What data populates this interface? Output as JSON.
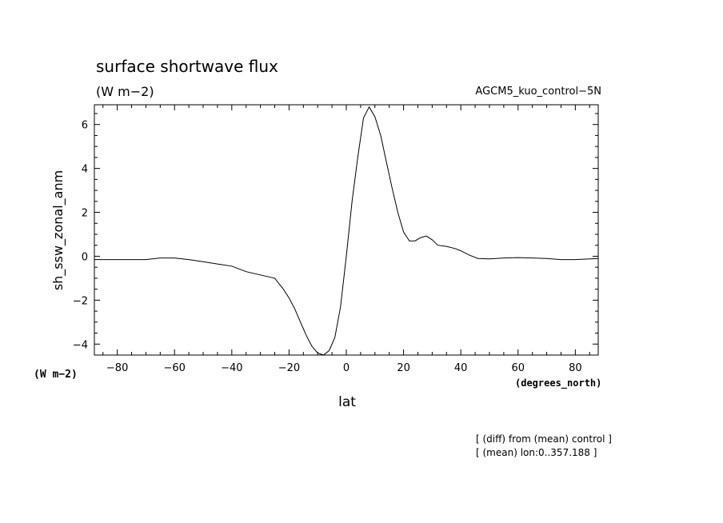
{
  "chart_data": {
    "type": "line",
    "title": "surface shortwave flux",
    "units": "(W m−2)",
    "run_label": "AGCM5_kuo_control−5N",
    "ylabel": "sh_ssw_zonal_anm",
    "y_units_label": "(W m−2)",
    "xlabel": "lat",
    "x_units_label": "(degrees_north)",
    "xlim": [
      -88,
      88
    ],
    "ylim": [
      -4.5,
      6.9
    ],
    "x_ticks": [
      -80,
      -60,
      -40,
      -20,
      0,
      20,
      40,
      60,
      80
    ],
    "y_ticks": [
      -4,
      -2,
      0,
      2,
      4,
      6
    ],
    "grid": false,
    "notes": [
      "[ (diff) from (mean) control ]",
      "[ (mean) lon:0..357.188 ]"
    ],
    "series": [
      {
        "x": [
          -88,
          -80,
          -70,
          -65,
          -60,
          -55,
          -50,
          -45,
          -40,
          -35,
          -30,
          -25,
          -22,
          -20,
          -18,
          -16,
          -14,
          -12,
          -10,
          -8,
          -6,
          -4,
          -2,
          0,
          2,
          4,
          6,
          8,
          10,
          12,
          14,
          16,
          18,
          20,
          22,
          24,
          26,
          28,
          30,
          32,
          35,
          38,
          40,
          43,
          46,
          50,
          55,
          60,
          65,
          70,
          75,
          80,
          88
        ],
        "y": [
          -0.15,
          -0.15,
          -0.15,
          -0.08,
          -0.08,
          -0.15,
          -0.25,
          -0.35,
          -0.45,
          -0.7,
          -0.85,
          -1.0,
          -1.5,
          -1.9,
          -2.4,
          -3.0,
          -3.6,
          -4.1,
          -4.4,
          -4.5,
          -4.3,
          -3.7,
          -2.3,
          0.0,
          2.5,
          4.5,
          6.3,
          6.8,
          6.35,
          5.5,
          4.3,
          3.1,
          2.0,
          1.1,
          0.7,
          0.7,
          0.85,
          0.92,
          0.75,
          0.5,
          0.45,
          0.35,
          0.25,
          0.05,
          -0.1,
          -0.12,
          -0.08,
          -0.06,
          -0.08,
          -0.1,
          -0.15,
          -0.15,
          -0.1
        ]
      }
    ]
  }
}
